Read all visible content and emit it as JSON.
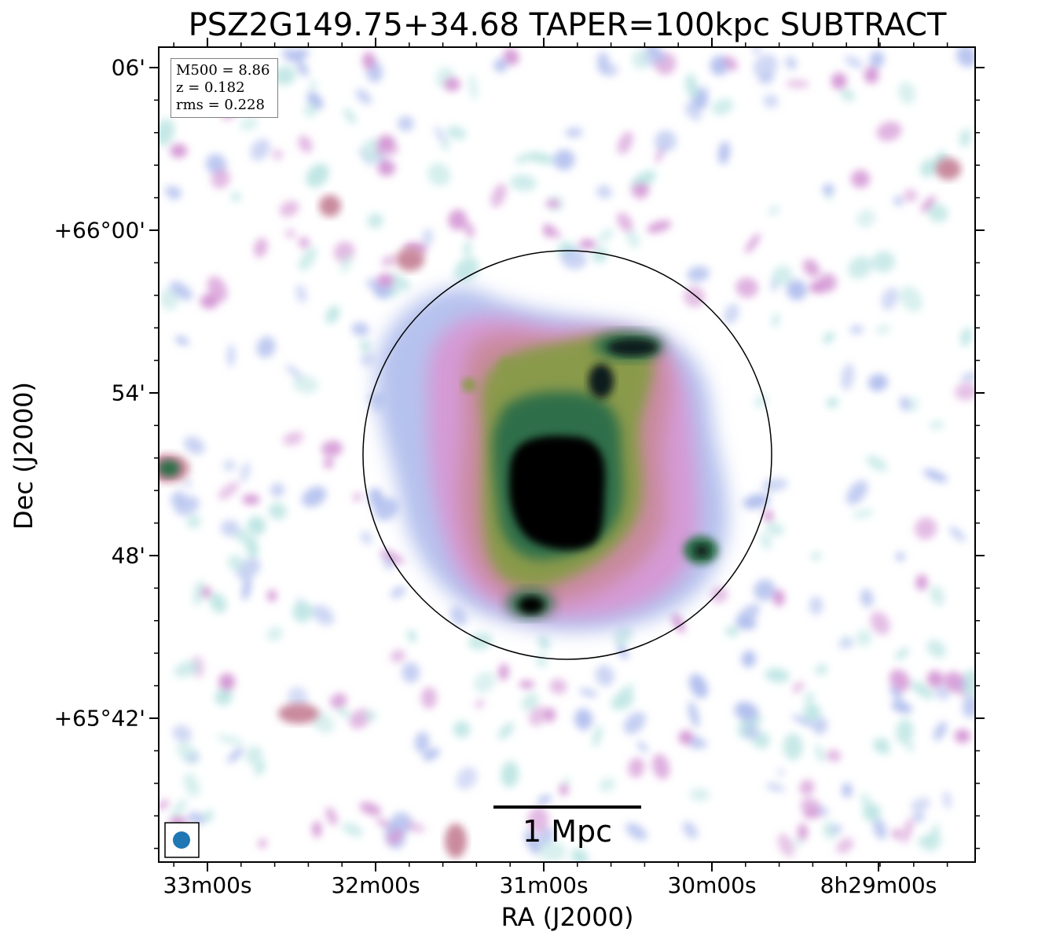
{
  "title": "PSZ2G149.75+34.68 TAPER=100kpc SUBTRACT",
  "axes": {
    "xlabel": "RA (J2000)",
    "ylabel": "Dec (J2000)",
    "x_ticks": [
      "33m00s",
      "32m00s",
      "31m00s",
      "30m00s",
      "8h29m00s"
    ],
    "y_ticks": [
      "06'",
      "+66°00'",
      "54'",
      "48'",
      "+65°42'"
    ]
  },
  "info": {
    "m500": "M500 = 8.86",
    "z": "z = 0.182",
    "rms": "rms = 0.228"
  },
  "scalebar_label": "1 Mpc",
  "colors": {
    "colormap": [
      "#ffffff",
      "#bfe6e4",
      "#b3c0ee",
      "#d59ad6",
      "#c98a9e",
      "#8a9a4c",
      "#2f6e4a",
      "#0c1c1e",
      "#000000"
    ],
    "beam": "#1f77b4",
    "frame": "#000000"
  }
}
